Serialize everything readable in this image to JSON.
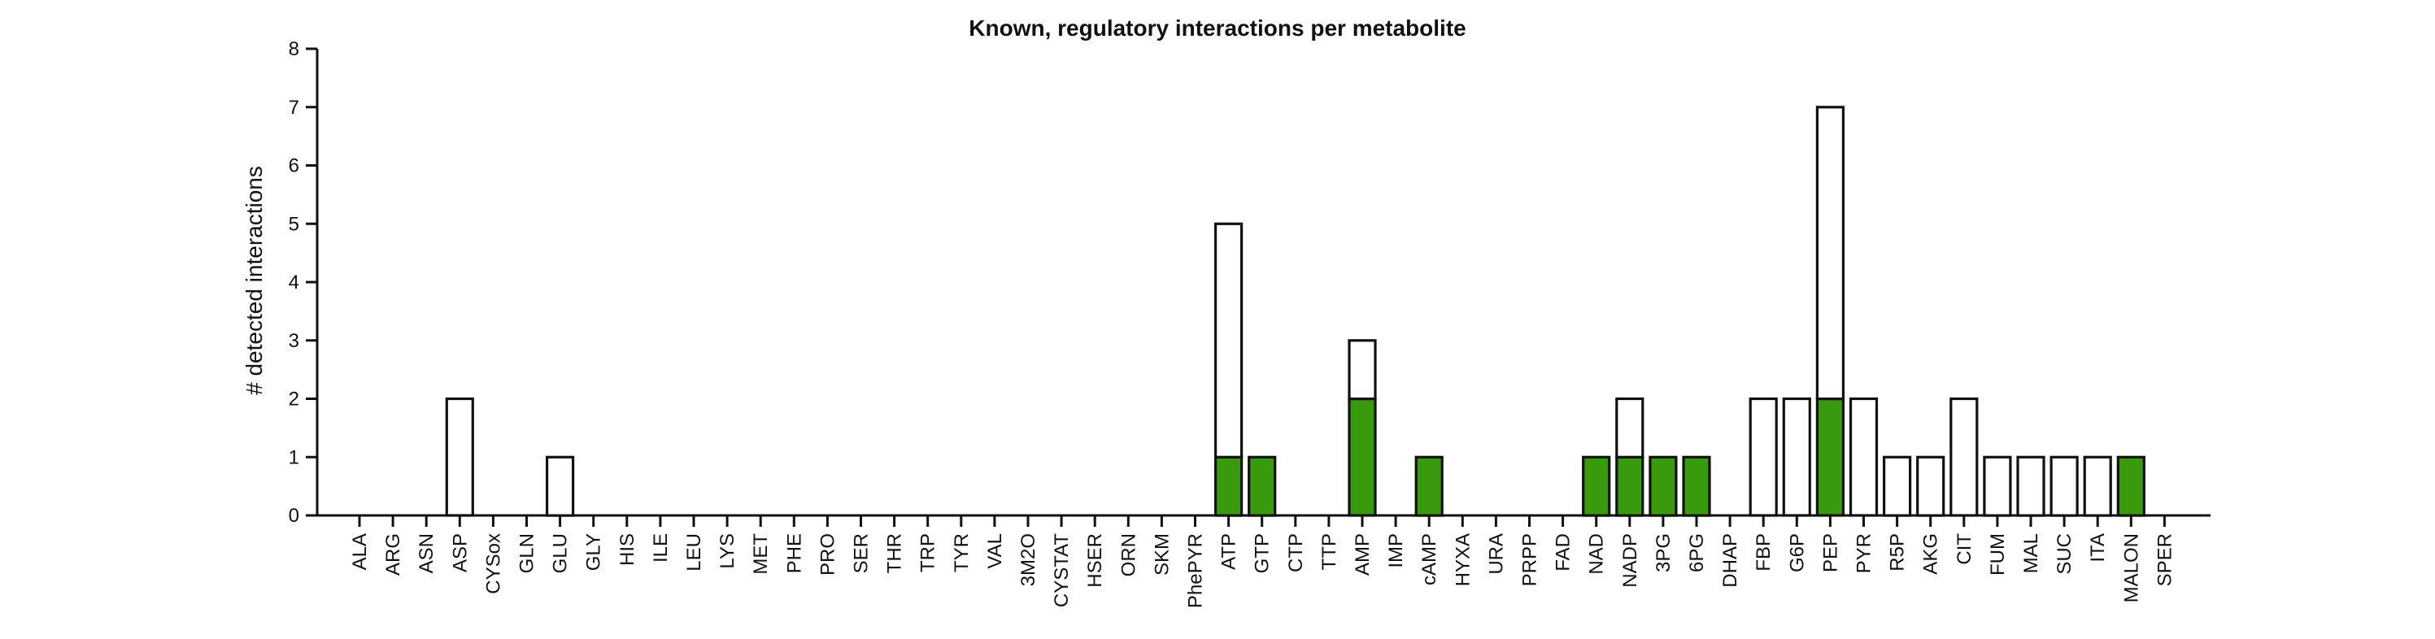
{
  "chart_data": {
    "type": "bar",
    "stacked": true,
    "title": "Known, regulatory interactions per metabolite",
    "xlabel": "",
    "ylabel": "# detected interactions",
    "ylim": [
      0,
      8
    ],
    "yticks": [
      0,
      1,
      2,
      3,
      4,
      5,
      6,
      7,
      8
    ],
    "grid": false,
    "legend": "none",
    "categories": [
      "ALA",
      "ARG",
      "ASN",
      "ASP",
      "CYSox",
      "GLN",
      "GLU",
      "GLY",
      "HIS",
      "ILE",
      "LEU",
      "LYS",
      "MET",
      "PHE",
      "PRO",
      "SER",
      "THR",
      "TRP",
      "TYR",
      "VAL",
      "3M2O",
      "CYSTAT",
      "HSER",
      "ORN",
      "SKM",
      "PhePYR",
      "ATP",
      "GTP",
      "CTP",
      "TTP",
      "AMP",
      "IMP",
      "cAMP",
      "HYXA",
      "URA",
      "PRPP",
      "FAD",
      "NAD",
      "NADP",
      "3PG",
      "6PG",
      "DHAP",
      "FBP",
      "G6P",
      "PEP",
      "PYR",
      "R5P",
      "AKG",
      "CIT",
      "FUM",
      "MAL",
      "SUC",
      "ITA",
      "MALON",
      "SPER"
    ],
    "series": [
      {
        "color": "#3a9a0e",
        "values": [
          0,
          0,
          0,
          0,
          0,
          0,
          0,
          0,
          0,
          0,
          0,
          0,
          0,
          0,
          0,
          0,
          0,
          0,
          0,
          0,
          0,
          0,
          0,
          0,
          0,
          0,
          1,
          1,
          0,
          0,
          2,
          0,
          1,
          0,
          0,
          0,
          0,
          1,
          1,
          1,
          1,
          0,
          0,
          0,
          2,
          0,
          0,
          0,
          0,
          0,
          0,
          0,
          0,
          1,
          0
        ]
      },
      {
        "color": "#ffffff",
        "values": [
          0,
          0,
          0,
          2,
          0,
          0,
          1,
          0,
          0,
          0,
          0,
          0,
          0,
          0,
          0,
          0,
          0,
          0,
          0,
          0,
          0,
          0,
          0,
          0,
          0,
          0,
          4,
          0,
          0,
          0,
          1,
          0,
          0,
          0,
          0,
          0,
          0,
          0,
          1,
          0,
          0,
          0,
          2,
          2,
          5,
          2,
          1,
          1,
          2,
          1,
          1,
          1,
          1,
          0,
          0
        ]
      }
    ]
  }
}
